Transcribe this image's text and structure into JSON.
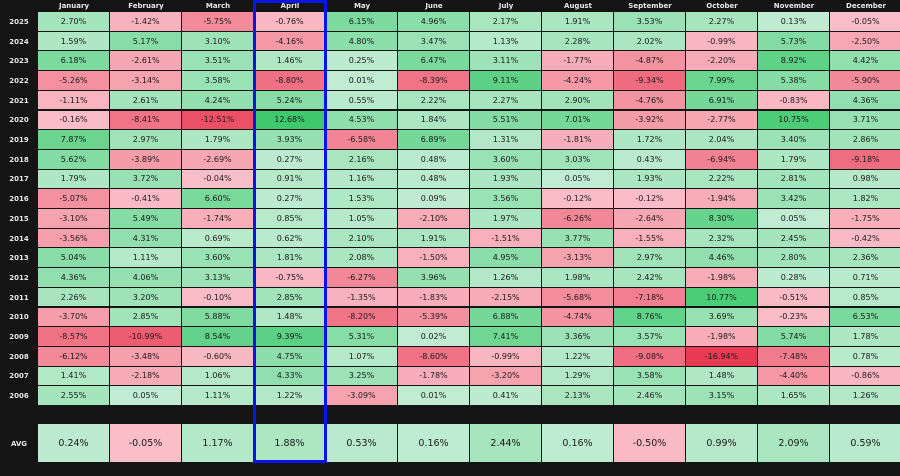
{
  "chart_data": {
    "type": "heatmap",
    "title": "",
    "xlabel": "",
    "ylabel": "",
    "columns": [
      "January",
      "February",
      "March",
      "April",
      "May",
      "June",
      "July",
      "August",
      "September",
      "October",
      "November",
      "December"
    ],
    "rows": [
      "2025",
      "2024",
      "2023",
      "2022",
      "2021",
      "2020",
      "2019",
      "2018",
      "2017",
      "2016",
      "2015",
      "2014",
      "2013",
      "2012",
      "2011",
      "2010",
      "2009",
      "2008",
      "2007",
      "2006"
    ],
    "values": [
      [
        "2.70%",
        "-1.42%",
        "-5.75%",
        "-0.76%",
        "6.15%",
        "4.96%",
        "2.17%",
        "1.91%",
        "3.53%",
        "2.27%",
        "0.13%",
        "-0.05%"
      ],
      [
        "1.59%",
        "5.17%",
        "3.10%",
        "-4.16%",
        "4.80%",
        "3.47%",
        "1.13%",
        "2.28%",
        "2.02%",
        "-0.99%",
        "5.73%",
        "-2.50%"
      ],
      [
        "6.18%",
        "-2.61%",
        "3.51%",
        "1.46%",
        "0.25%",
        "6.47%",
        "3.11%",
        "-1.77%",
        "-4.87%",
        "-2.20%",
        "8.92%",
        "4.42%"
      ],
      [
        "-5.26%",
        "-3.14%",
        "3.58%",
        "-8.80%",
        "0.01%",
        "-8.39%",
        "9.11%",
        "-4.24%",
        "-9.34%",
        "7.99%",
        "5.38%",
        "-5.90%"
      ],
      [
        "-1.11%",
        "2.61%",
        "4.24%",
        "5.24%",
        "0.55%",
        "2.22%",
        "2.27%",
        "2.90%",
        "-4.76%",
        "6.91%",
        "-0.83%",
        "4.36%"
      ],
      [
        "-0.16%",
        "-8.41%",
        "-12.51%",
        "12.68%",
        "4.53%",
        "1.84%",
        "5.51%",
        "7.01%",
        "-3.92%",
        "-2.77%",
        "10.75%",
        "3.71%"
      ],
      [
        "7.87%",
        "2.97%",
        "1.79%",
        "3.93%",
        "-6.58%",
        "6.89%",
        "1.31%",
        "-1.81%",
        "1.72%",
        "2.04%",
        "3.40%",
        "2.86%"
      ],
      [
        "5.62%",
        "-3.89%",
        "-2.69%",
        "0.27%",
        "2.16%",
        "0.48%",
        "3.60%",
        "3.03%",
        "0.43%",
        "-6.94%",
        "1.79%",
        "-9.18%"
      ],
      [
        "1.79%",
        "3.72%",
        "-0.04%",
        "0.91%",
        "1.16%",
        "0.48%",
        "1.93%",
        "0.05%",
        "1.93%",
        "2.22%",
        "2.81%",
        "0.98%"
      ],
      [
        "-5.07%",
        "-0.41%",
        "6.60%",
        "0.27%",
        "1.53%",
        "0.09%",
        "3.56%",
        "-0.12%",
        "-0.12%",
        "-1.94%",
        "3.42%",
        "1.82%"
      ],
      [
        "-3.10%",
        "5.49%",
        "-1.74%",
        "0.85%",
        "1.05%",
        "-2.10%",
        "1.97%",
        "-6.26%",
        "-2.64%",
        "8.30%",
        "0.05%",
        "-1.75%"
      ],
      [
        "-3.56%",
        "4.31%",
        "0.69%",
        "0.62%",
        "2.10%",
        "1.91%",
        "-1.51%",
        "3.77%",
        "-1.55%",
        "2.32%",
        "2.45%",
        "-0.42%"
      ],
      [
        "5.04%",
        "1.11%",
        "3.60%",
        "1.81%",
        "2.08%",
        "-1.50%",
        "4.95%",
        "-3.13%",
        "2.97%",
        "4.46%",
        "2.80%",
        "2.36%"
      ],
      [
        "4.36%",
        "4.06%",
        "3.13%",
        "-0.75%",
        "-6.27%",
        "3.96%",
        "1.26%",
        "1.98%",
        "2.42%",
        "-1.98%",
        "0.28%",
        "0.71%"
      ],
      [
        "2.26%",
        "3.20%",
        "-0.10%",
        "2.85%",
        "-1.35%",
        "-1.83%",
        "-2.15%",
        "-5.68%",
        "-7.18%",
        "10.77%",
        "-0.51%",
        "0.85%"
      ],
      [
        "-3.70%",
        "2.85%",
        "5.88%",
        "1.48%",
        "-8.20%",
        "-5.39%",
        "6.88%",
        "-4.74%",
        "8.76%",
        "3.69%",
        "-0.23%",
        "6.53%"
      ],
      [
        "-8.57%",
        "-10.99%",
        "8.54%",
        "9.39%",
        "5.31%",
        "0.02%",
        "7.41%",
        "3.36%",
        "3.57%",
        "-1.98%",
        "5.74%",
        "1.78%"
      ],
      [
        "-6.12%",
        "-3.48%",
        "-0.60%",
        "4.75%",
        "1.07%",
        "-8.60%",
        "-0.99%",
        "1.22%",
        "-9.08%",
        "-16.94%",
        "-7.48%",
        "0.78%"
      ],
      [
        "1.41%",
        "-2.18%",
        "1.06%",
        "4.33%",
        "3.25%",
        "-1.78%",
        "-3.20%",
        "1.29%",
        "3.58%",
        "1.48%",
        "-4.40%",
        "-0.86%"
      ],
      [
        "2.55%",
        "0.05%",
        "1.11%",
        "1.22%",
        "-3.09%",
        "0.01%",
        "0.41%",
        "2.13%",
        "2.46%",
        "3.15%",
        "1.65%",
        "1.26%"
      ]
    ],
    "avg_label": "AVG",
    "avg": [
      "0.24%",
      "-0.05%",
      "1.17%",
      "1.88%",
      "0.53%",
      "0.16%",
      "2.44%",
      "0.16%",
      "-0.50%",
      "0.99%",
      "2.09%",
      "0.59%"
    ],
    "highlighted_column": "April",
    "highlight_color": "#0a14e6",
    "positive_color": "#3ec96e",
    "negative_color": "#e83a52",
    "neutral_color": "#c0ecd2"
  }
}
